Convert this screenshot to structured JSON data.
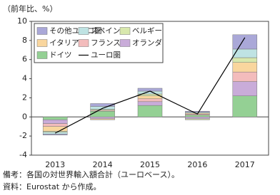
{
  "chart_data": {
    "type": "bar",
    "stacked": true,
    "y_label": "（前年比、%）",
    "categories": [
      "2013",
      "2014",
      "2015",
      "2016",
      "2017"
    ],
    "series": [
      {
        "name": "その他ユーロ圏",
        "color": "#aaa8d8",
        "values": [
          -0.1,
          0.3,
          0.3,
          0.1,
          1.5
        ]
      },
      {
        "name": "スペイン",
        "color": "#bfe3e3",
        "values": [
          -0.2,
          0.3,
          0.3,
          0.1,
          0.9
        ]
      },
      {
        "name": "ベルギー",
        "color": "#d8e8ad",
        "values": [
          -0.1,
          0.1,
          0.2,
          -0.1,
          0.5
        ]
      },
      {
        "name": "イタリア",
        "color": "#f9d69e",
        "values": [
          -0.5,
          -0.1,
          0.3,
          0.1,
          1.0
        ]
      },
      {
        "name": "フランス",
        "color": "#f3bcbc",
        "values": [
          -0.3,
          0.1,
          0.3,
          0.1,
          1.0
        ]
      },
      {
        "name": "オランダ",
        "color": "#c9acd9",
        "values": [
          -0.4,
          -0.2,
          0.4,
          -0.2,
          1.5
        ]
      },
      {
        "name": "ドイツ",
        "color": "#94d094",
        "values": [
          -0.3,
          0.6,
          1.2,
          0.2,
          2.2
        ]
      },
      {
        "name": "ユーロ圏",
        "color": "#000000",
        "type": "line",
        "values": [
          -1.7,
          0.9,
          2.7,
          0.3,
          8.3
        ]
      }
    ],
    "ylim": [
      -4,
      10
    ],
    "yticks": [
      -4,
      -2,
      0,
      2,
      4,
      6,
      8,
      10
    ],
    "grid": false,
    "notes": [
      "備考：各国の対世界輸入額合計（ユーロベース）。",
      "資料：Eurostat から作成。"
    ]
  }
}
